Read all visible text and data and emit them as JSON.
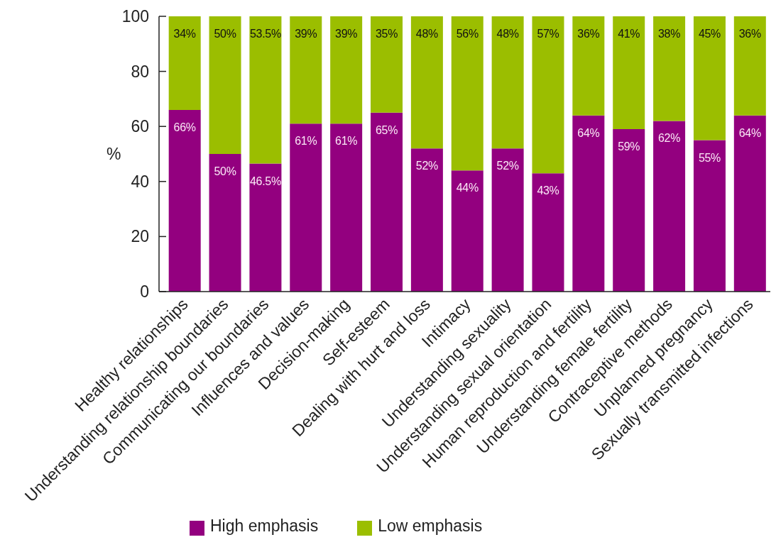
{
  "chart_data": {
    "type": "bar",
    "stacked": true,
    "categories": [
      "Healthy relationships",
      "Understanding relationship boundaries",
      "Communicating our boundaries",
      "Influences and values",
      "Decision-making",
      "Self-esteem",
      "Dealing with hurt and loss",
      "Intimacy",
      "Understanding sexuality",
      "Understanding sexual orientation",
      "Human reproduction and fertility",
      "Understanding female fertility",
      "Contraceptive methods",
      "Unplanned pregnancy",
      "Sexually transmitted infections"
    ],
    "ylabel": "%",
    "ylim": [
      0,
      100
    ],
    "yticks": [
      0,
      20,
      40,
      60,
      80,
      100
    ],
    "grid": false,
    "legend": "bottom",
    "series": [
      {
        "name": "High emphasis",
        "color": "#93007f",
        "values": [
          66,
          50,
          46.5,
          61,
          61,
          65,
          52,
          44,
          52,
          43,
          64,
          59,
          62,
          55,
          64
        ],
        "value_labels": [
          "66%",
          "50%",
          "46.5%",
          "61%",
          "61%",
          "65%",
          "52%",
          "44%",
          "52%",
          "43%",
          "64%",
          "59%",
          "62%",
          "55%",
          "64%"
        ]
      },
      {
        "name": "Low emphasis",
        "color": "#9bbe00",
        "values": [
          34,
          50,
          53.5,
          39,
          39,
          35,
          48,
          56,
          48,
          57,
          36,
          41,
          38,
          45,
          36
        ],
        "value_labels": [
          "34%",
          "50%",
          "53.5%",
          "39%",
          "39%",
          "35%",
          "48%",
          "56%",
          "48%",
          "57%",
          "36%",
          "41%",
          "38%",
          "45%",
          "36%"
        ]
      }
    ]
  }
}
